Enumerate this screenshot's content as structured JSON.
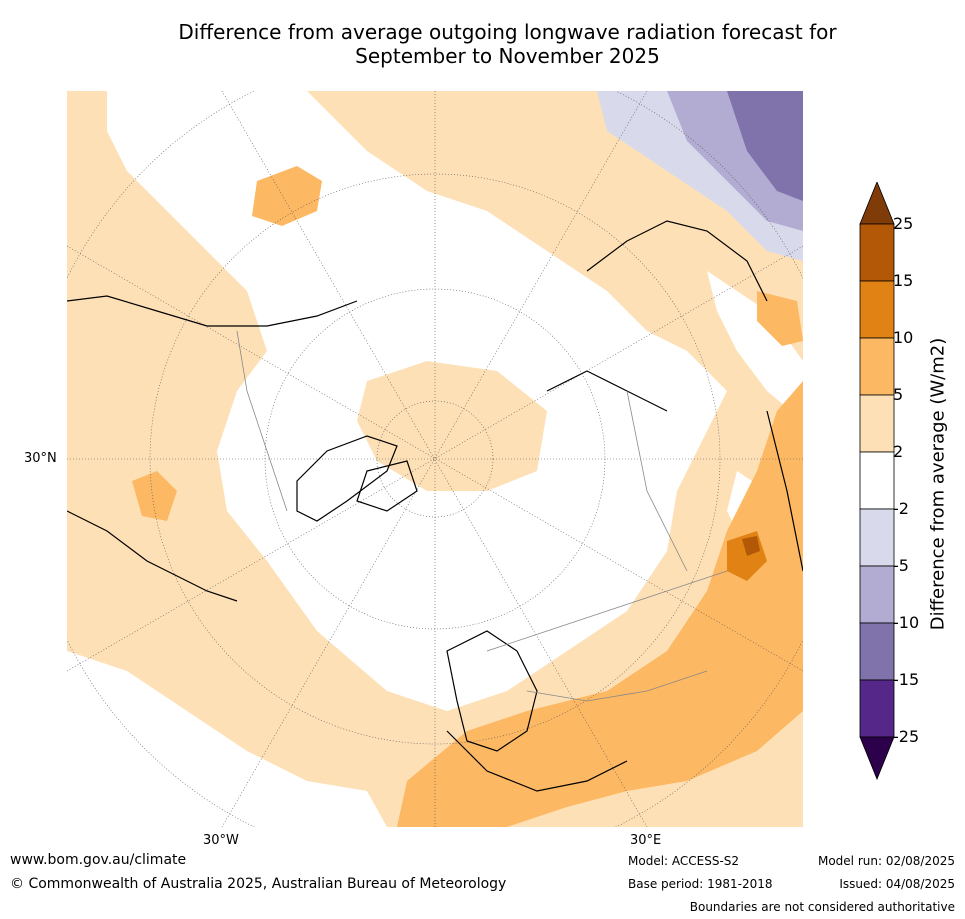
{
  "title_line1": "Difference from average outgoing longwave radiation forecast for",
  "title_line2": "September to November 2025",
  "map": {
    "graticule_labels": {
      "lat_30n": "30°N",
      "lon_30w": "30°W",
      "lon_30e": "30°E"
    }
  },
  "colorbar": {
    "title": "Difference from average (W/m2)",
    "ticks": [
      "25",
      "15",
      "10",
      "5",
      "2",
      "-2",
      "-5",
      "-10",
      "-15",
      "-25"
    ],
    "colors": [
      "#7f3b08",
      "#b35806",
      "#e08214",
      "#fdb863",
      "#fee0b6",
      "#ffffff",
      "#d8daeb",
      "#b2abd2",
      "#8073ac",
      "#542788",
      "#2d004b"
    ]
  },
  "footer": {
    "website": "www.bom.gov.au/climate",
    "copyright": "© Commonwealth of Australia 2025, Australian Bureau of Meteorology",
    "model": "Model: ACCESS-S2",
    "base_period": "Base period: 1981-2018",
    "model_run": "Model run: 02/08/2025",
    "issued": "Issued: 04/08/2025",
    "disclaimer": "Boundaries are not considered authoritative"
  }
}
